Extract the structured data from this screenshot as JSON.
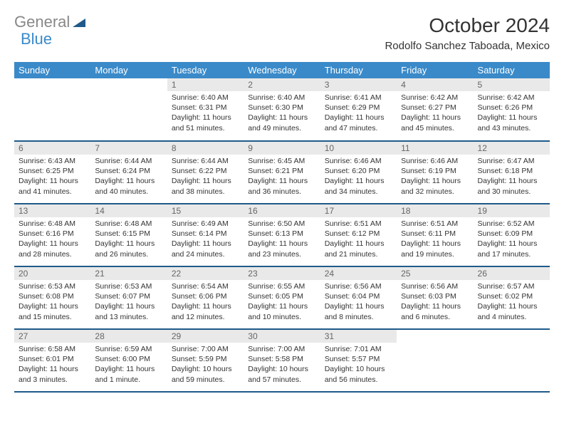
{
  "brand": {
    "word1": "General",
    "word2": "Blue"
  },
  "title": "October 2024",
  "location": "Rodolfo Sanchez Taboada, Mexico",
  "colors": {
    "header_bg": "#3a8ac9",
    "header_text": "#ffffff",
    "row_divider": "#1f5a8a",
    "daynum_bg": "#e9e9e9",
    "daynum_text": "#666666",
    "body_text": "#333333",
    "page_bg": "#ffffff",
    "logo_gray": "#888888",
    "logo_blue": "#3a8ac9"
  },
  "typography": {
    "title_fontsize": 28,
    "location_fontsize": 15,
    "dayheader_fontsize": 13,
    "daynum_fontsize": 12,
    "body_fontsize": 10.5,
    "font_family": "Arial"
  },
  "day_headers": [
    "Sunday",
    "Monday",
    "Tuesday",
    "Wednesday",
    "Thursday",
    "Friday",
    "Saturday"
  ],
  "weeks": [
    [
      {
        "empty": true
      },
      {
        "empty": true
      },
      {
        "num": "1",
        "sunrise": "Sunrise: 6:40 AM",
        "sunset": "Sunset: 6:31 PM",
        "daylight": "Daylight: 11 hours and 51 minutes."
      },
      {
        "num": "2",
        "sunrise": "Sunrise: 6:40 AM",
        "sunset": "Sunset: 6:30 PM",
        "daylight": "Daylight: 11 hours and 49 minutes."
      },
      {
        "num": "3",
        "sunrise": "Sunrise: 6:41 AM",
        "sunset": "Sunset: 6:29 PM",
        "daylight": "Daylight: 11 hours and 47 minutes."
      },
      {
        "num": "4",
        "sunrise": "Sunrise: 6:42 AM",
        "sunset": "Sunset: 6:27 PM",
        "daylight": "Daylight: 11 hours and 45 minutes."
      },
      {
        "num": "5",
        "sunrise": "Sunrise: 6:42 AM",
        "sunset": "Sunset: 6:26 PM",
        "daylight": "Daylight: 11 hours and 43 minutes."
      }
    ],
    [
      {
        "num": "6",
        "sunrise": "Sunrise: 6:43 AM",
        "sunset": "Sunset: 6:25 PM",
        "daylight": "Daylight: 11 hours and 41 minutes."
      },
      {
        "num": "7",
        "sunrise": "Sunrise: 6:44 AM",
        "sunset": "Sunset: 6:24 PM",
        "daylight": "Daylight: 11 hours and 40 minutes."
      },
      {
        "num": "8",
        "sunrise": "Sunrise: 6:44 AM",
        "sunset": "Sunset: 6:22 PM",
        "daylight": "Daylight: 11 hours and 38 minutes."
      },
      {
        "num": "9",
        "sunrise": "Sunrise: 6:45 AM",
        "sunset": "Sunset: 6:21 PM",
        "daylight": "Daylight: 11 hours and 36 minutes."
      },
      {
        "num": "10",
        "sunrise": "Sunrise: 6:46 AM",
        "sunset": "Sunset: 6:20 PM",
        "daylight": "Daylight: 11 hours and 34 minutes."
      },
      {
        "num": "11",
        "sunrise": "Sunrise: 6:46 AM",
        "sunset": "Sunset: 6:19 PM",
        "daylight": "Daylight: 11 hours and 32 minutes."
      },
      {
        "num": "12",
        "sunrise": "Sunrise: 6:47 AM",
        "sunset": "Sunset: 6:18 PM",
        "daylight": "Daylight: 11 hours and 30 minutes."
      }
    ],
    [
      {
        "num": "13",
        "sunrise": "Sunrise: 6:48 AM",
        "sunset": "Sunset: 6:16 PM",
        "daylight": "Daylight: 11 hours and 28 minutes."
      },
      {
        "num": "14",
        "sunrise": "Sunrise: 6:48 AM",
        "sunset": "Sunset: 6:15 PM",
        "daylight": "Daylight: 11 hours and 26 minutes."
      },
      {
        "num": "15",
        "sunrise": "Sunrise: 6:49 AM",
        "sunset": "Sunset: 6:14 PM",
        "daylight": "Daylight: 11 hours and 24 minutes."
      },
      {
        "num": "16",
        "sunrise": "Sunrise: 6:50 AM",
        "sunset": "Sunset: 6:13 PM",
        "daylight": "Daylight: 11 hours and 23 minutes."
      },
      {
        "num": "17",
        "sunrise": "Sunrise: 6:51 AM",
        "sunset": "Sunset: 6:12 PM",
        "daylight": "Daylight: 11 hours and 21 minutes."
      },
      {
        "num": "18",
        "sunrise": "Sunrise: 6:51 AM",
        "sunset": "Sunset: 6:11 PM",
        "daylight": "Daylight: 11 hours and 19 minutes."
      },
      {
        "num": "19",
        "sunrise": "Sunrise: 6:52 AM",
        "sunset": "Sunset: 6:09 PM",
        "daylight": "Daylight: 11 hours and 17 minutes."
      }
    ],
    [
      {
        "num": "20",
        "sunrise": "Sunrise: 6:53 AM",
        "sunset": "Sunset: 6:08 PM",
        "daylight": "Daylight: 11 hours and 15 minutes."
      },
      {
        "num": "21",
        "sunrise": "Sunrise: 6:53 AM",
        "sunset": "Sunset: 6:07 PM",
        "daylight": "Daylight: 11 hours and 13 minutes."
      },
      {
        "num": "22",
        "sunrise": "Sunrise: 6:54 AM",
        "sunset": "Sunset: 6:06 PM",
        "daylight": "Daylight: 11 hours and 12 minutes."
      },
      {
        "num": "23",
        "sunrise": "Sunrise: 6:55 AM",
        "sunset": "Sunset: 6:05 PM",
        "daylight": "Daylight: 11 hours and 10 minutes."
      },
      {
        "num": "24",
        "sunrise": "Sunrise: 6:56 AM",
        "sunset": "Sunset: 6:04 PM",
        "daylight": "Daylight: 11 hours and 8 minutes."
      },
      {
        "num": "25",
        "sunrise": "Sunrise: 6:56 AM",
        "sunset": "Sunset: 6:03 PM",
        "daylight": "Daylight: 11 hours and 6 minutes."
      },
      {
        "num": "26",
        "sunrise": "Sunrise: 6:57 AM",
        "sunset": "Sunset: 6:02 PM",
        "daylight": "Daylight: 11 hours and 4 minutes."
      }
    ],
    [
      {
        "num": "27",
        "sunrise": "Sunrise: 6:58 AM",
        "sunset": "Sunset: 6:01 PM",
        "daylight": "Daylight: 11 hours and 3 minutes."
      },
      {
        "num": "28",
        "sunrise": "Sunrise: 6:59 AM",
        "sunset": "Sunset: 6:00 PM",
        "daylight": "Daylight: 11 hours and 1 minute."
      },
      {
        "num": "29",
        "sunrise": "Sunrise: 7:00 AM",
        "sunset": "Sunset: 5:59 PM",
        "daylight": "Daylight: 10 hours and 59 minutes."
      },
      {
        "num": "30",
        "sunrise": "Sunrise: 7:00 AM",
        "sunset": "Sunset: 5:58 PM",
        "daylight": "Daylight: 10 hours and 57 minutes."
      },
      {
        "num": "31",
        "sunrise": "Sunrise: 7:01 AM",
        "sunset": "Sunset: 5:57 PM",
        "daylight": "Daylight: 10 hours and 56 minutes."
      },
      {
        "empty": true
      },
      {
        "empty": true
      }
    ]
  ]
}
